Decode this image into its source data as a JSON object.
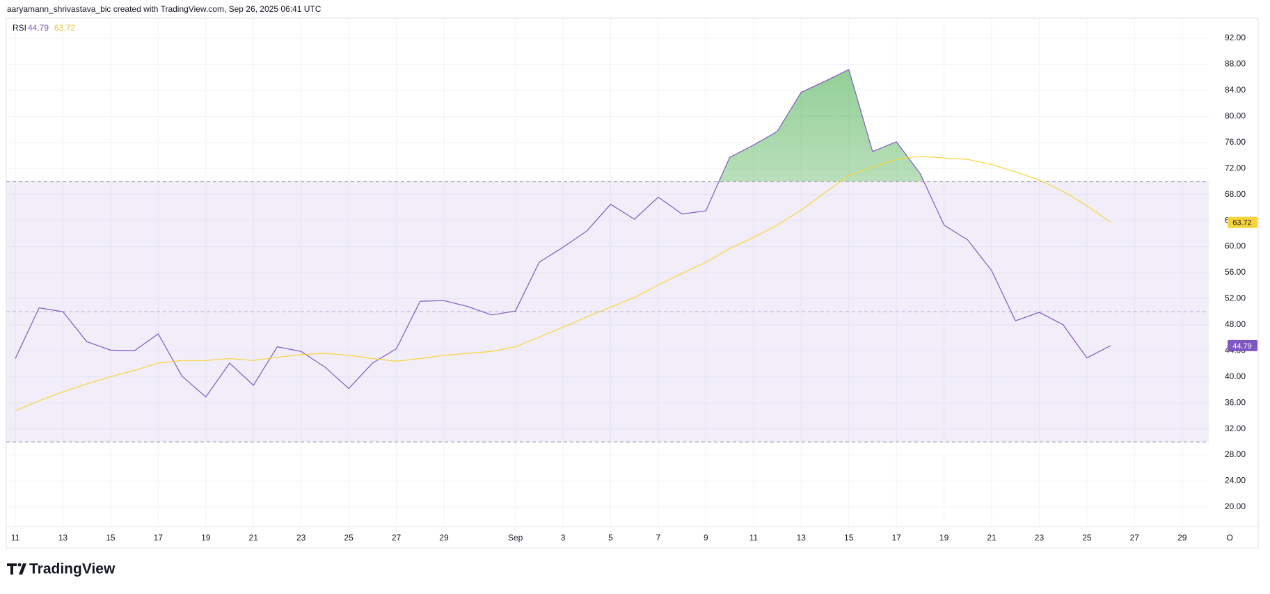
{
  "header": {
    "attribution": "aaryamann_shrivastava_bic created with TradingView.com, Sep 26, 2025 06:41 UTC"
  },
  "footer": {
    "brand": "TradingView"
  },
  "chart_data": {
    "type": "line",
    "title": "RSI",
    "categories": [
      "11",
      null,
      "13",
      null,
      "15",
      null,
      "17",
      null,
      "19",
      null,
      "21",
      null,
      "23",
      null,
      "25",
      null,
      "27",
      null,
      "29",
      null,
      null,
      "Sep",
      null,
      "3",
      null,
      "5",
      null,
      "7",
      null,
      "9",
      null,
      "11",
      null,
      "13",
      null,
      "15",
      null,
      "17",
      null,
      "19",
      null,
      "21",
      null,
      "23",
      null,
      "25",
      null,
      "27",
      null,
      "29",
      null,
      "O"
    ],
    "series": [
      {
        "color": "#7e57c2",
        "values": [
          42.8,
          50.6,
          50.0,
          45.4,
          44.1,
          44.0,
          46.6,
          40.1,
          36.9,
          42.1,
          38.7,
          44.6,
          43.9,
          41.5,
          38.2,
          42.1,
          44.3,
          51.6,
          51.7,
          50.8,
          49.5,
          50.1,
          57.6,
          59.9,
          62.4,
          66.5,
          64.2,
          67.6,
          65.0,
          65.5,
          73.7,
          75.6,
          77.7,
          83.7,
          85.4,
          87.2,
          74.6,
          76.1,
          71.2,
          63.3,
          61.0,
          56.3,
          48.6,
          49.9,
          48.0,
          42.9,
          44.79,
          null,
          null,
          null,
          null,
          null
        ]
      },
      {
        "color": "#f9d33c",
        "values": [
          34.8,
          36.3,
          37.7,
          38.9,
          40.0,
          41.0,
          42.1,
          42.5,
          42.5,
          42.8,
          42.5,
          43.0,
          43.4,
          43.6,
          43.3,
          42.8,
          42.4,
          42.8,
          43.3,
          43.6,
          43.9,
          44.6,
          46.1,
          47.6,
          49.2,
          50.7,
          52.2,
          54.1,
          55.9,
          57.6,
          59.7,
          61.4,
          63.3,
          65.6,
          68.3,
          70.9,
          72.2,
          73.4,
          73.9,
          73.6,
          73.4,
          72.6,
          71.5,
          70.2,
          68.5,
          66.3,
          63.72,
          null,
          null,
          null,
          null,
          null
        ]
      }
    ],
    "levels": [
      70,
      50,
      30
    ],
    "ylim": [
      17,
      95.1
    ],
    "yticks": [
      {
        "value": 20,
        "label": "20.00"
      },
      {
        "value": 24,
        "label": "24.00"
      },
      {
        "value": 28,
        "label": "28.00"
      },
      {
        "value": 32,
        "label": "32.00"
      },
      {
        "value": 36,
        "label": "36.00"
      },
      {
        "value": 40,
        "label": "40.00"
      },
      {
        "value": 44,
        "label": "44.00"
      },
      {
        "value": 48,
        "label": "48.00"
      },
      {
        "value": 52,
        "label": "52.00"
      },
      {
        "value": 56,
        "label": "56.00"
      },
      {
        "value": 60,
        "label": "60.00"
      },
      {
        "value": 64,
        "label": "64.00"
      },
      {
        "value": 68,
        "label": "68.00"
      },
      {
        "value": 72,
        "label": "72.00"
      },
      {
        "value": 76,
        "label": "76.00"
      },
      {
        "value": 80,
        "label": "80.00"
      },
      {
        "value": 84,
        "label": "84.00"
      },
      {
        "value": 88,
        "label": "88.00"
      },
      {
        "value": 92,
        "label": "92.00"
      }
    ],
    "grid": true
  }
}
